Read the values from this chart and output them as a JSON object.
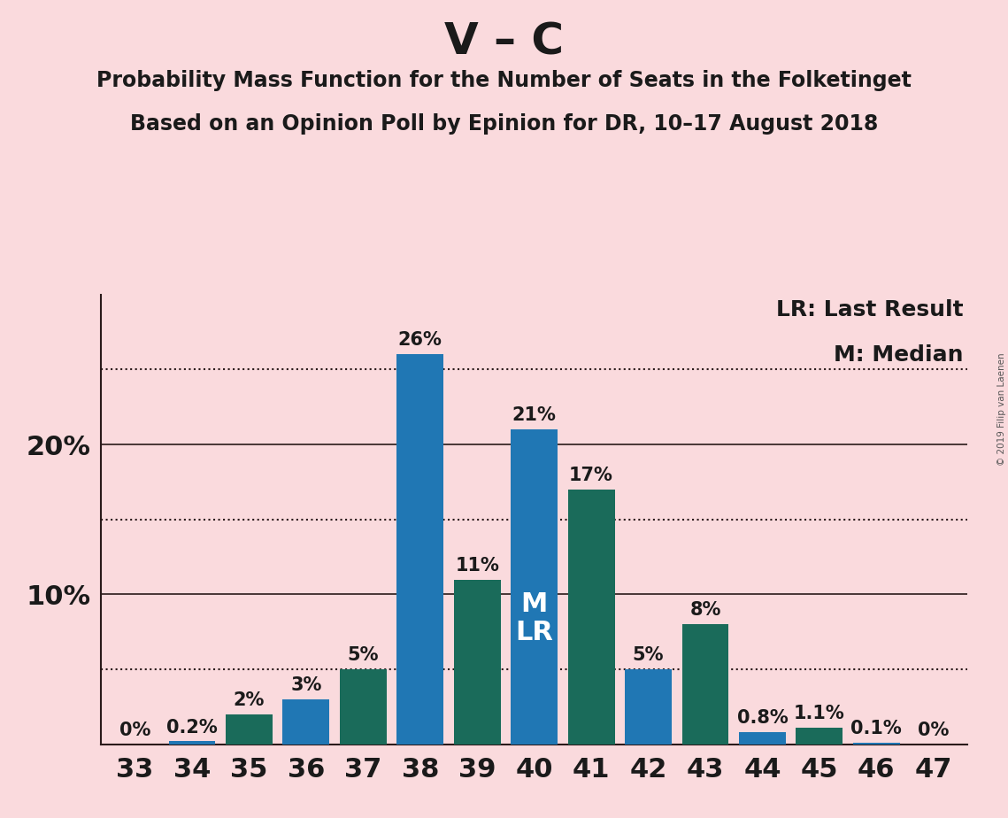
{
  "title1": "V – C",
  "title2": "Probability Mass Function for the Number of Seats in the Folketinget",
  "title3": "Based on an Opinion Poll by Epinion for DR, 10–17 August 2018",
  "copyright": "© 2019 Filip van Laenen",
  "seats": [
    33,
    34,
    35,
    36,
    37,
    38,
    39,
    40,
    41,
    42,
    43,
    44,
    45,
    46,
    47
  ],
  "values": [
    0.0,
    0.2,
    2.0,
    3.0,
    5.0,
    26.0,
    11.0,
    21.0,
    17.0,
    5.0,
    8.0,
    0.8,
    1.1,
    0.1,
    0.0
  ],
  "labels": [
    "0%",
    "0.2%",
    "2%",
    "3%",
    "5%",
    "26%",
    "11%",
    "21%",
    "17%",
    "5%",
    "8%",
    "0.8%",
    "1.1%",
    "0.1%",
    "0%"
  ],
  "background_color": "#fadadd",
  "blue_color": "#2077b4",
  "teal_color": "#1a6b5a",
  "ylim": [
    0,
    30
  ],
  "solid_lines": [
    10,
    20
  ],
  "dotted_lines": [
    5,
    15,
    25
  ],
  "ytick_values": [
    10,
    20
  ],
  "ytick_labels": [
    "10%",
    "20%"
  ],
  "median_bar": 40,
  "legend_text_lr": "LR: Last Result",
  "legend_text_m": "M: Median",
  "title1_fontsize": 36,
  "title2_fontsize": 17,
  "title3_fontsize": 17,
  "tick_fontsize": 22,
  "bar_label_fontsize": 15,
  "legend_fontsize": 18,
  "annotation_fontsize": 22
}
